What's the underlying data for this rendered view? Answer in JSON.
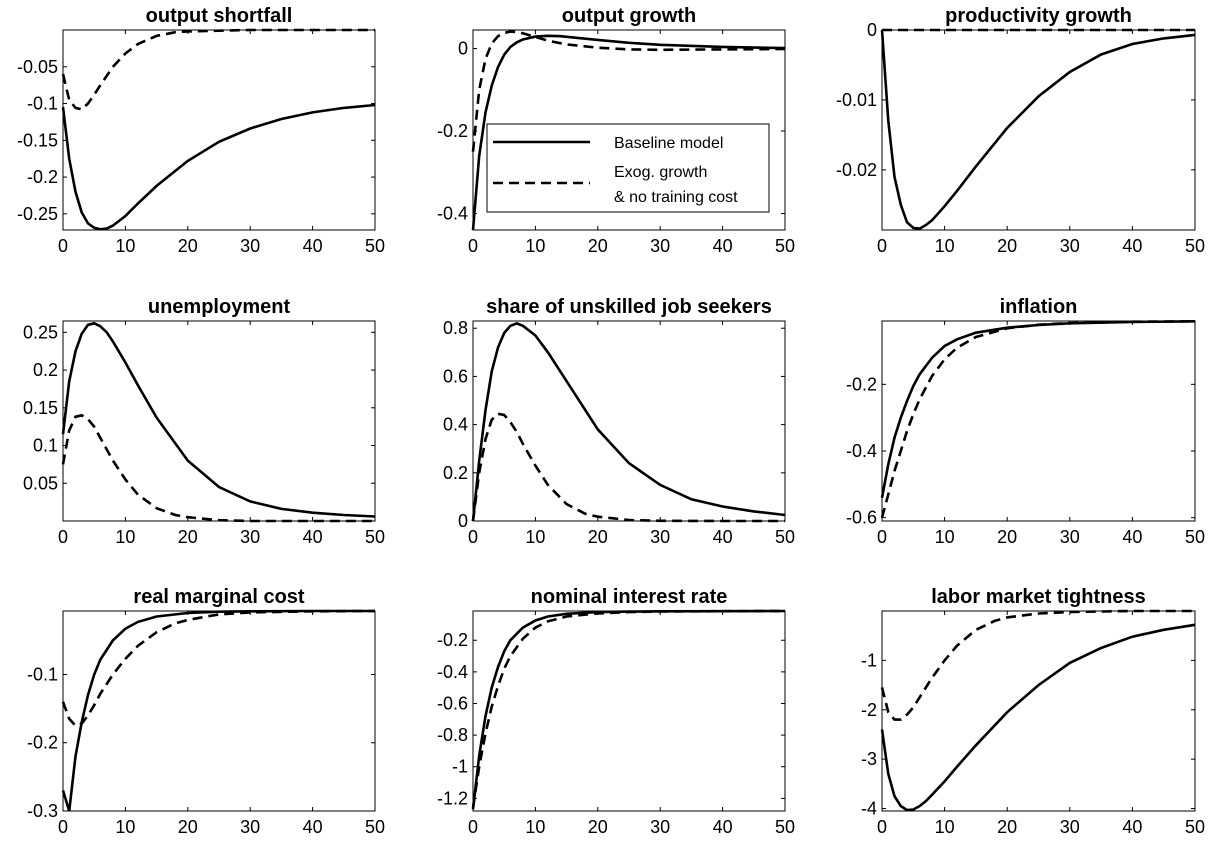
{
  "legend": {
    "baseline": "Baseline model",
    "exog_line1": "Exog. growth",
    "exog_line2": "& no training cost"
  },
  "chart_data": [
    {
      "type": "line",
      "title": "output shortfall",
      "xlim": [
        0,
        50
      ],
      "ylim": [
        -0.272,
        0
      ],
      "xticks": [
        0,
        10,
        20,
        30,
        40,
        50
      ],
      "yticks": [
        -0.25,
        -0.2,
        -0.15,
        -0.1,
        -0.05
      ],
      "ytick_labels": [
        "-0.25",
        "-0.2",
        "-0.15",
        "-0.1",
        "-0.05"
      ],
      "series": [
        {
          "name": "Baseline model",
          "style": "solid",
          "x": [
            0,
            1,
            2,
            3,
            4,
            5,
            6,
            7,
            8,
            10,
            12,
            15,
            20,
            25,
            30,
            35,
            40,
            45,
            50
          ],
          "values": [
            -0.105,
            -0.175,
            -0.22,
            -0.248,
            -0.263,
            -0.269,
            -0.271,
            -0.27,
            -0.266,
            -0.253,
            -0.236,
            -0.212,
            -0.178,
            -0.152,
            -0.134,
            -0.121,
            -0.112,
            -0.106,
            -0.102
          ]
        },
        {
          "name": "Exog. growth & no training cost",
          "style": "dashed",
          "x": [
            0,
            1,
            2,
            3,
            4,
            5,
            6,
            8,
            10,
            12,
            15,
            18,
            20,
            25,
            30,
            40,
            50
          ],
          "values": [
            -0.06,
            -0.095,
            -0.106,
            -0.108,
            -0.1,
            -0.088,
            -0.075,
            -0.05,
            -0.032,
            -0.019,
            -0.008,
            -0.003,
            -0.002,
            -0.001,
            0,
            0,
            0
          ]
        }
      ]
    },
    {
      "type": "line",
      "title": "output growth",
      "xlim": [
        0,
        50
      ],
      "ylim": [
        -0.44,
        0.045
      ],
      "xticks": [
        0,
        10,
        20,
        30,
        40,
        50
      ],
      "yticks": [
        -0.4,
        -0.2,
        0
      ],
      "ytick_labels": [
        "-0.4",
        "-0.2",
        "0"
      ],
      "series": [
        {
          "name": "Baseline model",
          "style": "solid",
          "x": [
            0,
            1,
            2,
            3,
            4,
            5,
            6,
            7,
            8,
            10,
            12,
            14,
            16,
            20,
            25,
            30,
            40,
            50
          ],
          "values": [
            -0.44,
            -0.26,
            -0.155,
            -0.09,
            -0.045,
            -0.015,
            0.004,
            0.015,
            0.022,
            0.029,
            0.031,
            0.03,
            0.027,
            0.021,
            0.014,
            0.009,
            0.004,
            0.001
          ]
        },
        {
          "name": "Exog. growth & no training cost",
          "style": "dashed",
          "x": [
            0,
            1,
            2,
            3,
            4,
            5,
            6,
            7,
            8,
            10,
            12,
            15,
            20,
            25,
            30,
            40,
            50
          ],
          "values": [
            -0.25,
            -0.1,
            -0.025,
            0.012,
            0.03,
            0.038,
            0.041,
            0.04,
            0.037,
            0.028,
            0.019,
            0.01,
            0.002,
            -0.002,
            -0.003,
            -0.002,
            -0.001
          ]
        }
      ]
    },
    {
      "type": "line",
      "title": "productivity growth",
      "xlim": [
        0,
        50
      ],
      "ylim": [
        -0.0286,
        0
      ],
      "xticks": [
        0,
        10,
        20,
        30,
        40,
        50
      ],
      "yticks": [
        -0.02,
        -0.01,
        0
      ],
      "ytick_labels": [
        "-0.02",
        "-0.01",
        "0"
      ],
      "series": [
        {
          "name": "Baseline model",
          "style": "solid",
          "x": [
            0,
            1,
            2,
            3,
            4,
            5,
            6,
            7,
            8,
            10,
            12,
            15,
            20,
            25,
            30,
            35,
            40,
            45,
            50
          ],
          "values": [
            0,
            -0.013,
            -0.021,
            -0.025,
            -0.0275,
            -0.0283,
            -0.0284,
            -0.0279,
            -0.0272,
            -0.0252,
            -0.023,
            -0.0195,
            -0.014,
            -0.0095,
            -0.006,
            -0.0035,
            -0.002,
            -0.0012,
            -0.0007
          ]
        },
        {
          "name": "Exog. growth & no training cost",
          "style": "dashed",
          "x": [
            0,
            50
          ],
          "values": [
            0,
            0
          ]
        }
      ]
    },
    {
      "type": "line",
      "title": "unemployment",
      "xlim": [
        0,
        50
      ],
      "ylim": [
        0,
        0.265
      ],
      "xticks": [
        0,
        10,
        20,
        30,
        40,
        50
      ],
      "yticks": [
        0.05,
        0.1,
        0.15,
        0.2,
        0.25
      ],
      "ytick_labels": [
        "0.05",
        "0.1",
        "0.15",
        "0.2",
        "0.25"
      ],
      "series": [
        {
          "name": "Baseline model",
          "style": "solid",
          "x": [
            0,
            1,
            2,
            3,
            4,
            5,
            6,
            7,
            8,
            10,
            12,
            15,
            20,
            25,
            30,
            35,
            40,
            45,
            50
          ],
          "values": [
            0.115,
            0.185,
            0.225,
            0.248,
            0.26,
            0.262,
            0.258,
            0.25,
            0.238,
            0.21,
            0.18,
            0.137,
            0.08,
            0.045,
            0.026,
            0.016,
            0.011,
            0.008,
            0.006
          ]
        },
        {
          "name": "Exog. growth & no training cost",
          "style": "dashed",
          "x": [
            0,
            1,
            2,
            3,
            4,
            5,
            6,
            8,
            10,
            12,
            15,
            18,
            20,
            25,
            30,
            40,
            50
          ],
          "values": [
            0.075,
            0.12,
            0.138,
            0.14,
            0.135,
            0.125,
            0.11,
            0.08,
            0.055,
            0.035,
            0.017,
            0.008,
            0.005,
            0.001,
            0,
            0,
            0
          ]
        }
      ]
    },
    {
      "type": "line",
      "title": "share of unskilled job seekers",
      "xlim": [
        0,
        50
      ],
      "ylim": [
        0,
        0.83
      ],
      "xticks": [
        0,
        10,
        20,
        30,
        40,
        50
      ],
      "yticks": [
        0,
        0.2,
        0.4,
        0.6,
        0.8
      ],
      "ytick_labels": [
        "0",
        "0.2",
        "0.4",
        "0.6",
        "0.8"
      ],
      "series": [
        {
          "name": "Baseline model",
          "style": "solid",
          "x": [
            0,
            1,
            2,
            3,
            4,
            5,
            6,
            7,
            8,
            10,
            12,
            15,
            20,
            25,
            30,
            35,
            40,
            45,
            50
          ],
          "values": [
            0,
            0.25,
            0.46,
            0.62,
            0.72,
            0.78,
            0.81,
            0.82,
            0.81,
            0.77,
            0.7,
            0.58,
            0.38,
            0.24,
            0.15,
            0.09,
            0.06,
            0.04,
            0.025
          ]
        },
        {
          "name": "Exog. growth & no training cost",
          "style": "dashed",
          "x": [
            0,
            1,
            2,
            3,
            4,
            5,
            6,
            7,
            8,
            10,
            12,
            15,
            18,
            20,
            25,
            30,
            40,
            50
          ],
          "values": [
            0,
            0.2,
            0.34,
            0.42,
            0.445,
            0.44,
            0.41,
            0.37,
            0.32,
            0.23,
            0.15,
            0.07,
            0.03,
            0.018,
            0.004,
            0.001,
            0,
            0
          ]
        }
      ]
    },
    {
      "type": "line",
      "title": "inflation",
      "xlim": [
        0,
        50
      ],
      "ylim": [
        -0.61,
        -0.01
      ],
      "xticks": [
        0,
        10,
        20,
        30,
        40,
        50
      ],
      "yticks": [
        -0.6,
        -0.4,
        -0.2
      ],
      "ytick_labels": [
        "-0.6",
        "-0.4",
        "-0.2"
      ],
      "series": [
        {
          "name": "Baseline model",
          "style": "solid",
          "x": [
            0,
            1,
            2,
            3,
            4,
            5,
            6,
            8,
            10,
            12,
            15,
            20,
            25,
            30,
            40,
            50
          ],
          "values": [
            -0.54,
            -0.44,
            -0.36,
            -0.3,
            -0.25,
            -0.205,
            -0.17,
            -0.12,
            -0.085,
            -0.065,
            -0.045,
            -0.03,
            -0.022,
            -0.017,
            -0.013,
            -0.011
          ]
        },
        {
          "name": "Exog. growth & no training cost",
          "style": "dashed",
          "x": [
            0,
            1,
            2,
            3,
            4,
            5,
            6,
            8,
            10,
            12,
            15,
            20,
            25,
            30,
            40,
            50
          ],
          "values": [
            -0.6,
            -0.53,
            -0.46,
            -0.4,
            -0.34,
            -0.29,
            -0.245,
            -0.175,
            -0.125,
            -0.09,
            -0.058,
            -0.032,
            -0.021,
            -0.016,
            -0.012,
            -0.011
          ]
        }
      ]
    },
    {
      "type": "line",
      "title": "real marginal cost",
      "xlim": [
        0,
        50
      ],
      "ylim": [
        -0.3,
        -0.007
      ],
      "xticks": [
        0,
        10,
        20,
        30,
        40,
        50
      ],
      "yticks": [
        -0.3,
        -0.2,
        -0.1
      ],
      "ytick_labels": [
        "-0.3",
        "-0.2",
        "-0.1"
      ],
      "series": [
        {
          "name": "Baseline model",
          "style": "solid",
          "x": [
            0,
            1,
            2,
            3,
            4,
            5,
            6,
            8,
            10,
            12,
            15,
            20,
            25,
            30,
            40,
            50
          ],
          "values": [
            -0.27,
            -0.3,
            -0.22,
            -0.17,
            -0.13,
            -0.1,
            -0.078,
            -0.05,
            -0.033,
            -0.023,
            -0.015,
            -0.01,
            -0.008,
            -0.0075,
            -0.007,
            -0.007
          ]
        },
        {
          "name": "Exog. growth & no training cost",
          "style": "dashed",
          "x": [
            0,
            1,
            2,
            3,
            4,
            5,
            6,
            8,
            10,
            12,
            15,
            18,
            20,
            25,
            30,
            40,
            50
          ],
          "values": [
            -0.14,
            -0.165,
            -0.175,
            -0.172,
            -0.16,
            -0.145,
            -0.128,
            -0.1,
            -0.077,
            -0.058,
            -0.038,
            -0.025,
            -0.02,
            -0.012,
            -0.009,
            -0.0075,
            -0.007
          ]
        }
      ]
    },
    {
      "type": "line",
      "title": "nominal interest rate",
      "xlim": [
        0,
        50
      ],
      "ylim": [
        -1.28,
        -0.015
      ],
      "xticks": [
        0,
        10,
        20,
        30,
        40,
        50
      ],
      "yticks": [
        -1.2,
        -1,
        -0.8,
        -0.6,
        -0.4,
        -0.2
      ],
      "ytick_labels": [
        "-1.2",
        "-1",
        "-0.8",
        "-0.6",
        "-0.4",
        "-0.2"
      ],
      "series": [
        {
          "name": "Baseline model",
          "style": "solid",
          "x": [
            0,
            1,
            2,
            3,
            4,
            5,
            6,
            8,
            10,
            12,
            15,
            20,
            25,
            30,
            40,
            50
          ],
          "values": [
            -1.27,
            -0.93,
            -0.68,
            -0.5,
            -0.37,
            -0.27,
            -0.2,
            -0.12,
            -0.075,
            -0.05,
            -0.033,
            -0.022,
            -0.019,
            -0.017,
            -0.016,
            -0.015
          ]
        },
        {
          "name": "Exog. growth & no training cost",
          "style": "dashed",
          "x": [
            0,
            1,
            2,
            3,
            4,
            5,
            6,
            8,
            10,
            12,
            15,
            20,
            25,
            30,
            40,
            50
          ],
          "values": [
            -1.26,
            -1.0,
            -0.79,
            -0.62,
            -0.49,
            -0.38,
            -0.3,
            -0.19,
            -0.12,
            -0.08,
            -0.05,
            -0.03,
            -0.022,
            -0.018,
            -0.016,
            -0.015
          ]
        }
      ]
    },
    {
      "type": "line",
      "title": "labor market tightness",
      "xlim": [
        0,
        50
      ],
      "ylim": [
        -4.05,
        0
      ],
      "xticks": [
        0,
        10,
        20,
        30,
        40,
        50
      ],
      "yticks": [
        -4,
        -3,
        -2,
        -1
      ],
      "ytick_labels": [
        "-4",
        "-3",
        "-2",
        "-1"
      ],
      "series": [
        {
          "name": "Baseline model",
          "style": "solid",
          "x": [
            0,
            1,
            2,
            3,
            4,
            5,
            6,
            7,
            8,
            10,
            12,
            15,
            20,
            25,
            30,
            35,
            40,
            45,
            50
          ],
          "values": [
            -2.4,
            -3.3,
            -3.75,
            -3.95,
            -4.03,
            -4.02,
            -3.95,
            -3.85,
            -3.72,
            -3.45,
            -3.15,
            -2.72,
            -2.05,
            -1.5,
            -1.05,
            -0.75,
            -0.52,
            -0.38,
            -0.28
          ]
        },
        {
          "name": "Exog. growth & no training cost",
          "style": "dashed",
          "x": [
            0,
            1,
            2,
            3,
            4,
            5,
            6,
            8,
            10,
            12,
            15,
            18,
            20,
            25,
            30,
            40,
            50
          ],
          "values": [
            -1.55,
            -2.05,
            -2.2,
            -2.2,
            -2.1,
            -1.95,
            -1.75,
            -1.35,
            -1.0,
            -0.7,
            -0.38,
            -0.2,
            -0.13,
            -0.05,
            -0.02,
            0,
            0
          ]
        }
      ]
    }
  ]
}
